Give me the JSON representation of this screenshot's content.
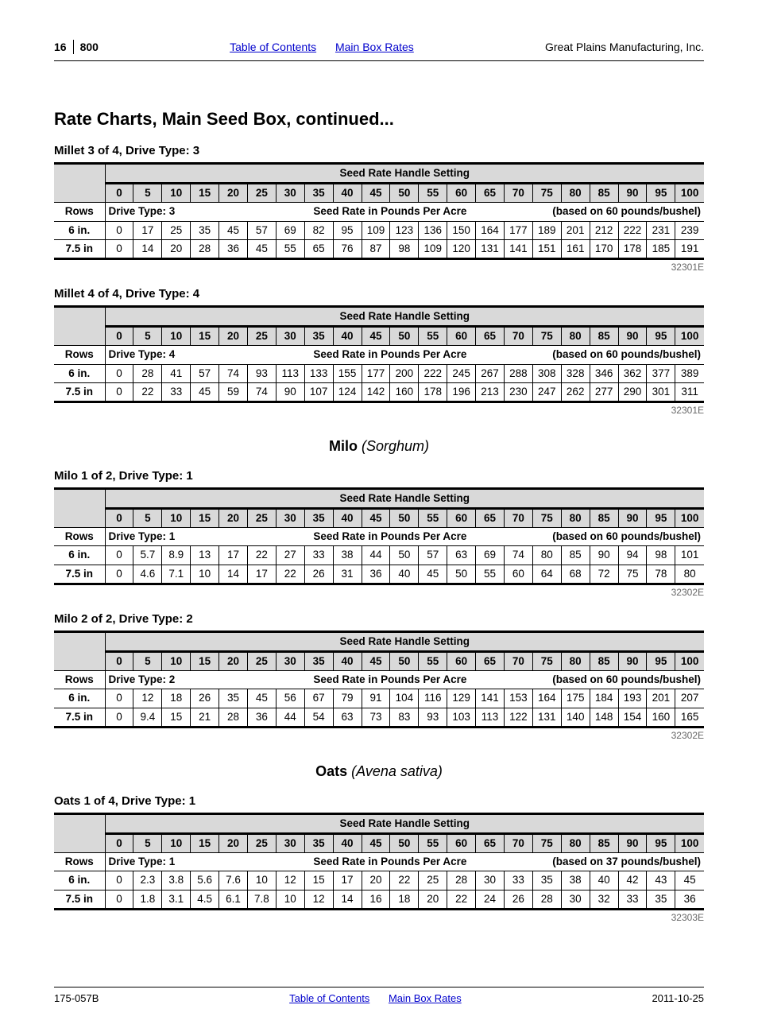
{
  "header": {
    "page_num": "16",
    "model": "800",
    "link_toc": "Table of Contents",
    "link_rates": "Main Box Rates",
    "company": "Great Plains Manufacturing, Inc."
  },
  "title": "Rate Charts, Main Seed Box, continued...",
  "settings_header": "Seed Rate Handle Setting",
  "settings": [
    "0",
    "5",
    "10",
    "15",
    "20",
    "25",
    "30",
    "35",
    "40",
    "45",
    "50",
    "55",
    "60",
    "65",
    "70",
    "75",
    "80",
    "85",
    "90",
    "95",
    "100"
  ],
  "rows_label": "Rows",
  "seed_rate_label": "Seed Rate in Pounds Per Acre",
  "tables": [
    {
      "subtitle": "Millet 3 of 4, Drive Type: 3",
      "drive_label": "Drive Type: 3",
      "bushel_note": "(based on 60 pounds/bushel)",
      "code": "32301E",
      "rows": [
        {
          "label": "6 in.",
          "vals": [
            "0",
            "17",
            "25",
            "35",
            "45",
            "57",
            "69",
            "82",
            "95",
            "109",
            "123",
            "136",
            "150",
            "164",
            "177",
            "189",
            "201",
            "212",
            "222",
            "231",
            "239"
          ]
        },
        {
          "label": "7.5 in",
          "vals": [
            "0",
            "14",
            "20",
            "28",
            "36",
            "45",
            "55",
            "65",
            "76",
            "87",
            "98",
            "109",
            "120",
            "131",
            "141",
            "151",
            "161",
            "170",
            "178",
            "185",
            "191"
          ]
        }
      ]
    },
    {
      "subtitle": "Millet 4 of 4, Drive Type: 4",
      "drive_label": "Drive Type: 4",
      "bushel_note": "(based on 60 pounds/bushel)",
      "code": "32301E",
      "rows": [
        {
          "label": "6 in.",
          "vals": [
            "0",
            "28",
            "41",
            "57",
            "74",
            "93",
            "113",
            "133",
            "155",
            "177",
            "200",
            "222",
            "245",
            "267",
            "288",
            "308",
            "328",
            "346",
            "362",
            "377",
            "389"
          ]
        },
        {
          "label": "7.5 in",
          "vals": [
            "0",
            "22",
            "33",
            "45",
            "59",
            "74",
            "90",
            "107",
            "124",
            "142",
            "160",
            "178",
            "196",
            "213",
            "230",
            "247",
            "262",
            "277",
            "290",
            "301",
            "311"
          ]
        }
      ]
    },
    {
      "center_title_b": "Milo",
      "center_title_i": "(Sorghum)",
      "subtitle": "Milo 1 of 2, Drive Type: 1",
      "drive_label": "Drive Type: 1",
      "bushel_note": "(based on 60 pounds/bushel)",
      "code": "32302E",
      "rows": [
        {
          "label": "6 in.",
          "vals": [
            "0",
            "5.7",
            "8.9",
            "13",
            "17",
            "22",
            "27",
            "33",
            "38",
            "44",
            "50",
            "57",
            "63",
            "69",
            "74",
            "80",
            "85",
            "90",
            "94",
            "98",
            "101"
          ]
        },
        {
          "label": "7.5 in",
          "vals": [
            "0",
            "4.6",
            "7.1",
            "10",
            "14",
            "17",
            "22",
            "26",
            "31",
            "36",
            "40",
            "45",
            "50",
            "55",
            "60",
            "64",
            "68",
            "72",
            "75",
            "78",
            "80"
          ]
        }
      ]
    },
    {
      "subtitle": "Milo 2 of 2, Drive Type: 2",
      "drive_label": "Drive Type: 2",
      "bushel_note": "(based on 60 pounds/bushel)",
      "code": "32302E",
      "rows": [
        {
          "label": "6 in.",
          "vals": [
            "0",
            "12",
            "18",
            "26",
            "35",
            "45",
            "56",
            "67",
            "79",
            "91",
            "104",
            "116",
            "129",
            "141",
            "153",
            "164",
            "175",
            "184",
            "193",
            "201",
            "207"
          ]
        },
        {
          "label": "7.5 in",
          "vals": [
            "0",
            "9.4",
            "15",
            "21",
            "28",
            "36",
            "44",
            "54",
            "63",
            "73",
            "83",
            "93",
            "103",
            "113",
            "122",
            "131",
            "140",
            "148",
            "154",
            "160",
            "165"
          ]
        }
      ]
    },
    {
      "center_title_b": "Oats",
      "center_title_i": "(Avena sativa)",
      "subtitle": "Oats 1 of 4, Drive Type: 1",
      "drive_label": "Drive Type: 1",
      "bushel_note": "(based on 37 pounds/bushel)",
      "code": "32303E",
      "rows": [
        {
          "label": "6 in.",
          "vals": [
            "0",
            "2.3",
            "3.8",
            "5.6",
            "7.6",
            "10",
            "12",
            "15",
            "17",
            "20",
            "22",
            "25",
            "28",
            "30",
            "33",
            "35",
            "38",
            "40",
            "42",
            "43",
            "45"
          ]
        },
        {
          "label": "7.5 in",
          "vals": [
            "0",
            "1.8",
            "3.1",
            "4.5",
            "6.1",
            "7.8",
            "10",
            "12",
            "14",
            "16",
            "18",
            "20",
            "22",
            "24",
            "26",
            "28",
            "30",
            "32",
            "33",
            "35",
            "36"
          ]
        }
      ]
    }
  ],
  "footer": {
    "doc_code": "175-057B",
    "link_toc": "Table of Contents",
    "link_rates": "Main Box Rates",
    "date": "2011-10-25"
  }
}
